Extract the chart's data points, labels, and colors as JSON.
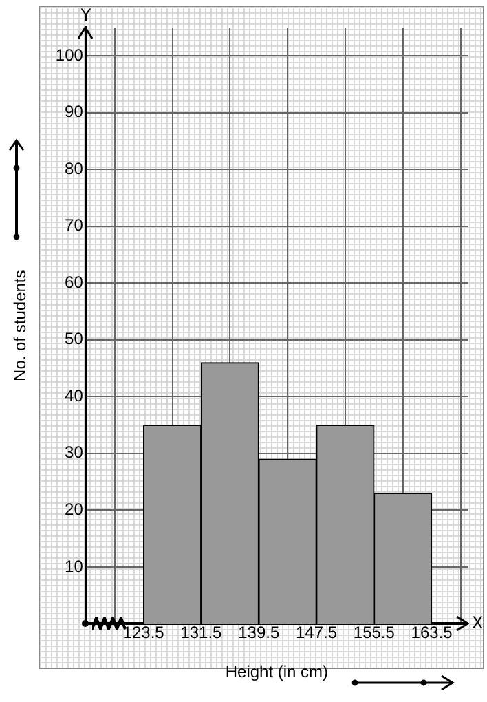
{
  "chart_data": {
    "type": "histogram",
    "xlabel": "Height (in cm)",
    "ylabel": "No. of students",
    "bins": [
      123.5,
      131.5,
      139.5,
      147.5,
      155.5,
      163.5
    ],
    "values": [
      35,
      46,
      29,
      35,
      23
    ],
    "color": "#999999",
    "xlim": [
      115.5,
      168.5
    ],
    "xticks": [
      123.5,
      131.5,
      139.5,
      147.5,
      155.5,
      163.5
    ],
    "ylim": [
      0,
      105
    ],
    "yticks": [
      10,
      20,
      30,
      40,
      50,
      60,
      70,
      80,
      90,
      100
    ],
    "grid": true,
    "annotations": [
      "X",
      "Y"
    ]
  }
}
